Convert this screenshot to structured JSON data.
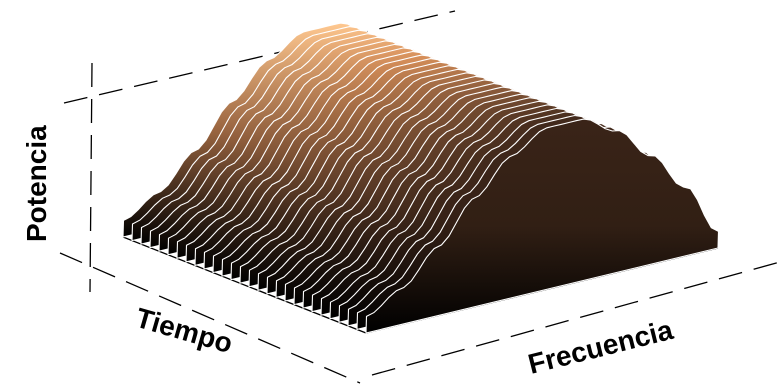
{
  "chart_data": {
    "type": "area",
    "surface": "3d-waterfall",
    "xlabel": "Frecuencia",
    "ylabel": "Tiempo",
    "zlabel": "Potencia",
    "grid": "dashed",
    "frequency": [
      0,
      0.1,
      0.2,
      0.3,
      0.4,
      0.5,
      0.6,
      0.7,
      0.8,
      0.9,
      1.0
    ],
    "power_profile": [
      0.1,
      0.22,
      0.42,
      0.66,
      0.86,
      0.98,
      0.98,
      0.86,
      0.66,
      0.42,
      0.1
    ],
    "time_slices": 28,
    "colormap": [
      "#000000",
      "#3a2418",
      "#8a5a3a",
      "#d8905a",
      "#ffc890"
    ]
  }
}
